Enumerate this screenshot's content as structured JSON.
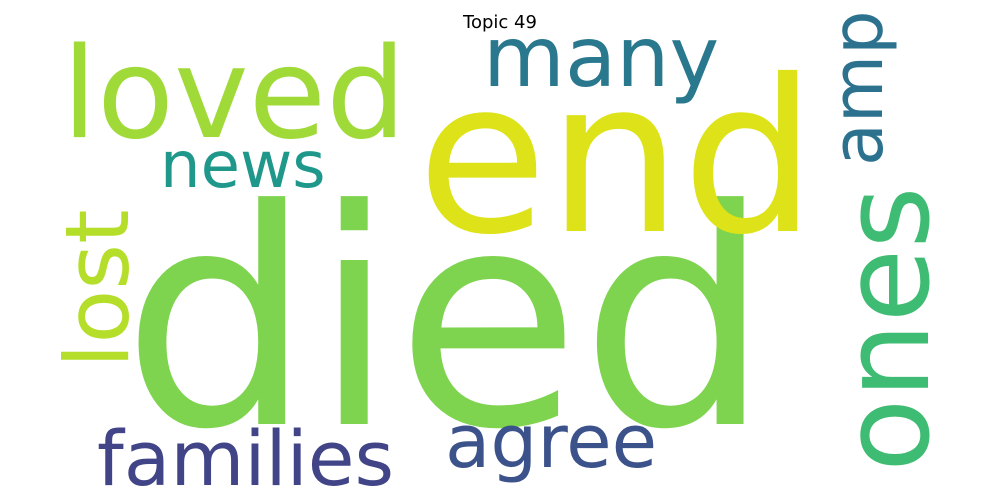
{
  "title": "Topic 49",
  "words": [
    {
      "text": "died",
      "color": "#7ed34f",
      "orientation": "horizontal"
    },
    {
      "text": "end",
      "color": "#dde318",
      "orientation": "horizontal"
    },
    {
      "text": "loved",
      "color": "#a0da39",
      "orientation": "horizontal"
    },
    {
      "text": "many",
      "color": "#2a788e",
      "orientation": "horizontal"
    },
    {
      "text": "ones",
      "color": "#3fbc73",
      "orientation": "vertical"
    },
    {
      "text": "lost",
      "color": "#b5de2b",
      "orientation": "vertical"
    },
    {
      "text": "news",
      "color": "#1f988b",
      "orientation": "horizontal"
    },
    {
      "text": "amp",
      "color": "#2c728e",
      "orientation": "vertical"
    },
    {
      "text": "families",
      "color": "#414487",
      "orientation": "horizontal"
    },
    {
      "text": "agree",
      "color": "#3b528b",
      "orientation": "horizontal"
    }
  ]
}
